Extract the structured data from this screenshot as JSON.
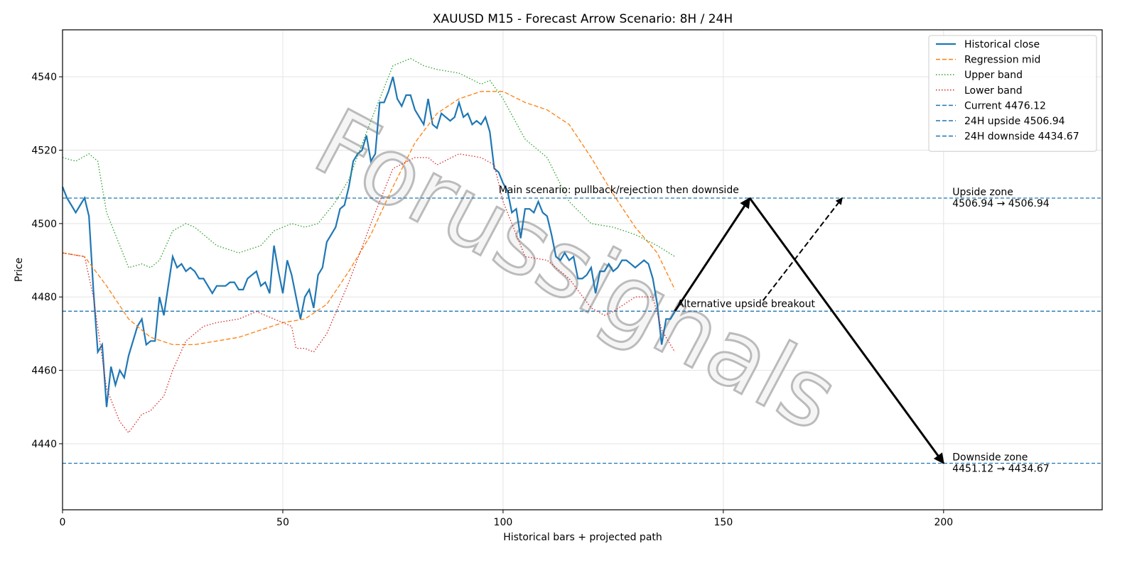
{
  "chart_data": {
    "type": "line",
    "title": "XAUUSD M15 - Forecast Arrow Scenario: 8H / 24H",
    "xlabel": "Historical bars + projected path",
    "ylabel": "Price",
    "xlim": [
      0,
      236
    ],
    "ylim": [
      4422,
      4552.8
    ],
    "xticks": [
      0,
      50,
      100,
      150,
      200
    ],
    "yticks": [
      4440,
      4460,
      4480,
      4500,
      4520,
      4540
    ],
    "grid": true,
    "legend": "upper right",
    "watermark": "Forussignals",
    "series": [
      {
        "name": "Historical close",
        "color": "#1f77b4",
        "style": "solid",
        "x": [
          0,
          1,
          2,
          3,
          4,
          5,
          6,
          7,
          8,
          9,
          10,
          11,
          12,
          13,
          14,
          15,
          16,
          17,
          18,
          19,
          20,
          21,
          22,
          23,
          24,
          25,
          26,
          27,
          28,
          29,
          30,
          31,
          32,
          33,
          34,
          35,
          36,
          37,
          38,
          39,
          40,
          41,
          42,
          43,
          44,
          45,
          46,
          47,
          48,
          49,
          50,
          51,
          52,
          53,
          54,
          55,
          56,
          57,
          58,
          59,
          60,
          61,
          62,
          63,
          64,
          65,
          66,
          67,
          68,
          69,
          70,
          71,
          72,
          73,
          74,
          75,
          76,
          77,
          78,
          79,
          80,
          81,
          82,
          83,
          84,
          85,
          86,
          87,
          88,
          89,
          90,
          91,
          92,
          93,
          94,
          95,
          96,
          97,
          98,
          99,
          100,
          101,
          102,
          103,
          104,
          105,
          106,
          107,
          108,
          109,
          110,
          111,
          112,
          113,
          114,
          115,
          116,
          117,
          118,
          119,
          120,
          121,
          122,
          123,
          124,
          125,
          126,
          127,
          128,
          129,
          130,
          131,
          132,
          133,
          134,
          135,
          136,
          137,
          138,
          139
        ],
        "values": [
          4510,
          4507,
          4505,
          4503,
          4505,
          4507,
          4502,
          4482,
          4465,
          4467,
          4450,
          4461,
          4456,
          4460,
          4458,
          4464,
          4468,
          4472,
          4474,
          4467,
          4468,
          4468,
          4480,
          4475,
          4483,
          4491,
          4488,
          4489,
          4487,
          4488,
          4487,
          4485,
          4485,
          4483,
          4481,
          4483,
          4483,
          4483,
          4484,
          4484,
          4482,
          4482,
          4485,
          4486,
          4487,
          4483,
          4484,
          4481,
          4494,
          4487,
          4481,
          4490,
          4486,
          4480,
          4474,
          4480,
          4482,
          4477,
          4486,
          4488,
          4495,
          4497,
          4499,
          4504,
          4505,
          4510,
          4517,
          4519,
          4520,
          4524,
          4517,
          4519,
          4533,
          4533,
          4536,
          4540,
          4534,
          4532,
          4535,
          4535,
          4531,
          4529,
          4527,
          4534,
          4527,
          4526,
          4530,
          4529,
          4528,
          4529,
          4533,
          4529,
          4530,
          4527,
          4528,
          4527,
          4529,
          4525,
          4515,
          4514,
          4511,
          4509,
          4503,
          4504,
          4496,
          4504,
          4504,
          4503,
          4506,
          4503,
          4502,
          4497,
          4491,
          4490,
          4492,
          4490,
          4491,
          4485,
          4485,
          4486,
          4488,
          4481,
          4487,
          4487,
          4489,
          4487,
          4488,
          4490,
          4490,
          4489,
          4488,
          4489,
          4490,
          4489,
          4485,
          4478,
          4467,
          4474,
          4474,
          4476
        ]
      },
      {
        "name": "Regression mid",
        "color": "#ff7f0e",
        "style": "dashed",
        "x": [
          0,
          5,
          10,
          15,
          20,
          25,
          30,
          35,
          40,
          45,
          50,
          55,
          60,
          65,
          70,
          75,
          80,
          85,
          90,
          95,
          100,
          105,
          110,
          115,
          120,
          125,
          130,
          135,
          139
        ],
        "values": [
          4492,
          4491,
          4483,
          4474,
          4469,
          4467,
          4467,
          4468,
          4469,
          4471,
          4473,
          4474,
          4478,
          4487,
          4497,
          4510,
          4522,
          4530,
          4534,
          4536,
          4536,
          4533,
          4531,
          4527,
          4518,
          4508,
          4499,
          4492,
          4482
        ]
      },
      {
        "name": "Upper band",
        "color": "#2ca02c",
        "style": "dotted",
        "x": [
          0,
          3,
          6,
          8,
          10,
          15,
          18,
          20,
          22,
          25,
          28,
          30,
          35,
          40,
          45,
          48,
          52,
          55,
          58,
          62,
          65,
          70,
          75,
          79,
          82,
          85,
          90,
          95,
          97,
          100,
          105,
          110,
          115,
          120,
          125,
          130,
          135,
          139
        ],
        "values": [
          4518,
          4517,
          4519,
          4517,
          4503,
          4488,
          4489,
          4488,
          4490,
          4498,
          4500,
          4499,
          4494,
          4492,
          4494,
          4498,
          4500,
          4499,
          4500,
          4506,
          4512,
          4528,
          4543,
          4545,
          4543,
          4542,
          4541,
          4538,
          4539,
          4534,
          4523,
          4518,
          4506,
          4500,
          4499,
          4497,
          4494,
          4491
        ]
      },
      {
        "name": "Lower band",
        "color": "#d62728",
        "style": "dotted",
        "x": [
          0,
          5,
          7,
          10,
          13,
          15,
          18,
          20,
          23,
          25,
          28,
          32,
          35,
          40,
          44,
          48,
          52,
          53,
          55,
          57,
          60,
          65,
          70,
          75,
          80,
          83,
          85,
          90,
          95,
          98,
          100,
          105,
          110,
          113,
          115,
          120,
          123,
          125,
          130,
          134,
          136,
          139
        ],
        "values": [
          4492,
          4491,
          4480,
          4455,
          4446,
          4443,
          4448,
          4449,
          4453,
          4460,
          4468,
          4472,
          4473,
          4474,
          4476,
          4474,
          4472,
          4466,
          4466,
          4465,
          4470,
          4484,
          4500,
          4515,
          4518,
          4518,
          4516,
          4519,
          4518,
          4516,
          4506,
          4491,
          4490,
          4487,
          4485,
          4477,
          4475,
          4476,
          4480,
          4480,
          4471,
          4465
        ]
      }
    ],
    "hlines": [
      {
        "name": "Current 4476.12",
        "value": 4476.12,
        "color": "#1f77b4"
      },
      {
        "name": "24H upside 4506.94",
        "value": 4506.94,
        "color": "#1f77b4"
      },
      {
        "name": "24H downside 4434.67",
        "value": 4434.67,
        "color": "#1f77b4"
      }
    ],
    "arrows": [
      {
        "x": [
          139,
          156,
          200
        ],
        "y": [
          4476.12,
          4506.94,
          4434.67
        ],
        "style": "solid"
      },
      {
        "x": [
          159,
          177
        ],
        "y": [
          4479,
          4507
        ],
        "style": "dashed"
      }
    ],
    "annotations": [
      {
        "lines": [
          "Main scenario: pullback/rejection then downside"
        ],
        "x": 99,
        "y": 4507.5
      },
      {
        "lines": [
          "Alternative upside breakout"
        ],
        "x": 139.5,
        "y": 4476.5
      },
      {
        "lines": [
          "Upside zone",
          "4506.94 → 4506.94"
        ],
        "x": 202,
        "y": 4506.94
      },
      {
        "lines": [
          "Downside zone",
          "4451.12 → 4434.67"
        ],
        "x": 202,
        "y": 4434.67
      }
    ]
  }
}
